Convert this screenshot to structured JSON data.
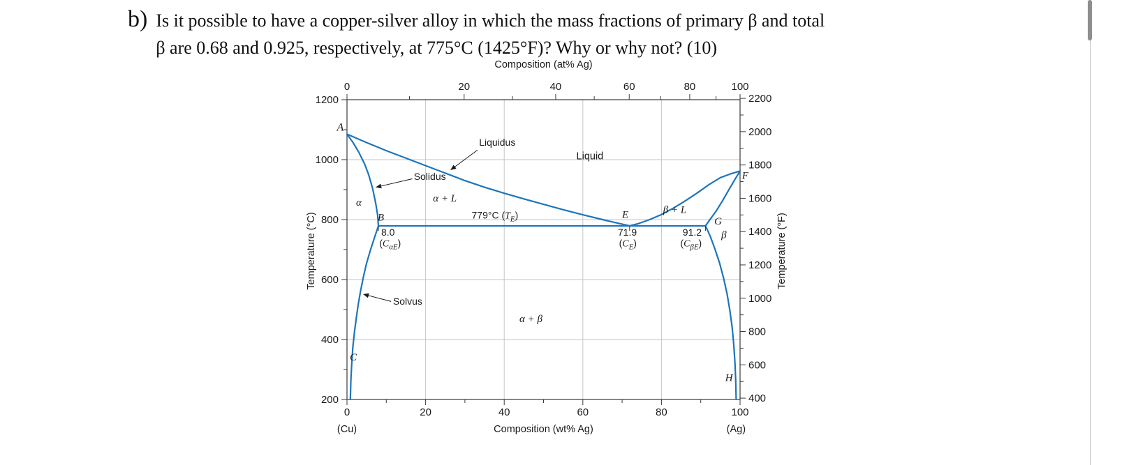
{
  "question": {
    "marker": "b)",
    "line1": "Is it possible to have a copper-silver alloy in which the mass fractions of primary β and total",
    "line2": "β are 0.68 and 0.925, respectively, at 775°C (1425°F)? Why or why not? (10)"
  },
  "chart_data": {
    "type": "line",
    "description": "Copper-silver binary eutectic phase diagram",
    "axes": {
      "top": {
        "label": "Composition (at% Ag)",
        "ticks": [
          {
            "v": 0,
            "wt": 0
          },
          {
            "v": 20,
            "wt": 29.8
          },
          {
            "v": 40,
            "wt": 53.1
          },
          {
            "v": 60,
            "wt": 71.8
          },
          {
            "v": 80,
            "wt": 87.2
          },
          {
            "v": 100,
            "wt": 100
          }
        ],
        "minor_wt": [
          15.9,
          42.1,
          62.9,
          79.8,
          93.9
        ]
      },
      "bottom": {
        "label": "Composition (wt% Ag)",
        "range": [
          0,
          100
        ],
        "ticks": [
          0,
          20,
          40,
          60,
          80,
          100
        ],
        "minor": [
          10,
          30,
          50,
          70,
          90
        ],
        "end_left": "(Cu)",
        "end_right": "(Ag)"
      },
      "left": {
        "label": "Temperature (°C)",
        "range": [
          200,
          1200
        ],
        "ticks": [
          200,
          400,
          600,
          800,
          1000,
          1200
        ],
        "minor": [
          300,
          500,
          700,
          900,
          1100
        ]
      },
      "right": {
        "label": "Temperature (°F)",
        "ticks": [
          400,
          600,
          800,
          1000,
          1200,
          1400,
          1600,
          1800,
          2000,
          2200
        ],
        "minor": [
          500,
          700,
          900,
          1100,
          1300,
          1500,
          1700,
          1900,
          2100
        ]
      }
    },
    "grid": {
      "v_wt": [
        20,
        40,
        60,
        80
      ],
      "h_c": [
        400,
        600,
        800,
        1000
      ]
    },
    "colors": {
      "boundary": "#1c75bc",
      "grid": "#c6c6c6",
      "frame": "#3a3a3a",
      "text": "#1a1a1a"
    },
    "eutectic": {
      "temperature_c": 779,
      "alpha_comp_wt": 8.0,
      "eutectic_comp_wt": 71.9,
      "beta_comp_wt": 91.2
    },
    "comp_ticks_wt": [
      8.0,
      71.9,
      91.2
    ],
    "boundaries": [
      {
        "name": "liquidus-left",
        "points": [
          [
            0,
            1085
          ],
          [
            5,
            1057
          ],
          [
            10,
            1030
          ],
          [
            15,
            1005
          ],
          [
            20,
            980
          ],
          [
            25,
            955
          ],
          [
            30,
            930
          ],
          [
            35,
            908
          ],
          [
            40,
            888
          ],
          [
            45,
            869
          ],
          [
            50,
            851
          ],
          [
            55,
            833
          ],
          [
            60,
            816
          ],
          [
            65,
            800
          ],
          [
            68,
            791
          ],
          [
            71.9,
            779
          ]
        ]
      },
      {
        "name": "liquidus-right",
        "points": [
          [
            71.9,
            779
          ],
          [
            74,
            786
          ],
          [
            77,
            800
          ],
          [
            80,
            817
          ],
          [
            83,
            838
          ],
          [
            86,
            862
          ],
          [
            89,
            888
          ],
          [
            92,
            916
          ],
          [
            95,
            940
          ],
          [
            97.5,
            952
          ],
          [
            100,
            962
          ]
        ]
      },
      {
        "name": "solidus-left",
        "points": [
          [
            0,
            1085
          ],
          [
            1.5,
            1058
          ],
          [
            3,
            1025
          ],
          [
            4.5,
            985
          ],
          [
            5.5,
            950
          ],
          [
            6.5,
            905
          ],
          [
            7.3,
            855
          ],
          [
            7.8,
            815
          ],
          [
            8,
            779
          ]
        ]
      },
      {
        "name": "solidus-right",
        "points": [
          [
            100,
            962
          ],
          [
            98.5,
            930
          ],
          [
            97,
            896
          ],
          [
            95.5,
            862
          ],
          [
            94,
            830
          ],
          [
            92.5,
            803
          ],
          [
            91.2,
            779
          ]
        ]
      },
      {
        "name": "solvus-left",
        "points": [
          [
            8,
            779
          ],
          [
            7,
            740
          ],
          [
            6,
            700
          ],
          [
            5,
            655
          ],
          [
            4.2,
            610
          ],
          [
            3.5,
            565
          ],
          [
            2.9,
            520
          ],
          [
            2.4,
            475
          ],
          [
            1.9,
            425
          ],
          [
            1.5,
            375
          ],
          [
            1.2,
            320
          ],
          [
            1.0,
            265
          ],
          [
            0.85,
            200
          ]
        ]
      },
      {
        "name": "solvus-right",
        "points": [
          [
            91.2,
            779
          ],
          [
            92.4,
            745
          ],
          [
            93.6,
            702
          ],
          [
            94.8,
            655
          ],
          [
            95.8,
            605
          ],
          [
            96.7,
            552
          ],
          [
            97.4,
            497
          ],
          [
            98,
            440
          ],
          [
            98.4,
            382
          ],
          [
            98.7,
            322
          ],
          [
            98.9,
            262
          ],
          [
            99,
            200
          ]
        ]
      },
      {
        "name": "eutectic-isotherm",
        "points": [
          [
            8,
            779
          ],
          [
            91.2,
            779
          ]
        ]
      }
    ],
    "labels": [
      {
        "wt": -1.7,
        "T": 1096,
        "anchor": "middle",
        "size": 16,
        "segments": [
          {
            "t": "A",
            "i": true
          }
        ]
      },
      {
        "wt": 8.6,
        "T": 796,
        "anchor": "middle",
        "size": 15,
        "segments": [
          {
            "t": "B",
            "i": true
          }
        ]
      },
      {
        "wt": 1.6,
        "T": 330,
        "anchor": "middle",
        "size": 15,
        "segments": [
          {
            "t": "C",
            "i": true
          }
        ]
      },
      {
        "wt": 70.8,
        "T": 806,
        "anchor": "middle",
        "size": 15,
        "segments": [
          {
            "t": "E",
            "i": true
          }
        ]
      },
      {
        "wt": 101.3,
        "T": 936,
        "anchor": "middle",
        "size": 15,
        "segments": [
          {
            "t": "F",
            "i": true
          }
        ]
      },
      {
        "wt": 94.4,
        "T": 784,
        "anchor": "middle",
        "size": 15,
        "segments": [
          {
            "t": "G",
            "i": true
          }
        ]
      },
      {
        "wt": 97.2,
        "T": 262,
        "anchor": "middle",
        "size": 15,
        "segments": [
          {
            "t": "H",
            "i": true
          }
        ]
      },
      {
        "wt": 3.0,
        "T": 846,
        "anchor": "middle",
        "size": 15,
        "segments": [
          {
            "t": "α",
            "i": true
          }
        ]
      },
      {
        "wt": 95.9,
        "T": 738,
        "anchor": "middle",
        "size": 15,
        "segments": [
          {
            "t": "β",
            "i": true
          }
        ]
      },
      {
        "wt": 24.9,
        "T": 861,
        "anchor": "middle",
        "size": 15,
        "segments": [
          {
            "t": "α + L",
            "i": true
          }
        ]
      },
      {
        "wt": 83.4,
        "T": 822,
        "anchor": "middle",
        "size": 15,
        "segments": [
          {
            "t": "β + L",
            "i": true
          }
        ]
      },
      {
        "wt": 46.8,
        "T": 458,
        "anchor": "middle",
        "size": 15,
        "segments": [
          {
            "t": "α + β",
            "i": true
          }
        ]
      },
      {
        "wt": 61.8,
        "T": 1001,
        "anchor": "middle",
        "size": 14.5,
        "segments": [
          {
            "t": "Liquid"
          }
        ]
      },
      {
        "wt": 33.6,
        "T": 1046,
        "anchor": "start",
        "size": 14,
        "segments": [
          {
            "t": "Liquidus"
          }
        ]
      },
      {
        "wt": 17.0,
        "T": 932,
        "anchor": "start",
        "size": 14,
        "segments": [
          {
            "t": "Solidus"
          }
        ]
      },
      {
        "wt": 11.7,
        "T": 516,
        "anchor": "start",
        "size": 14,
        "segments": [
          {
            "t": "Solvus"
          }
        ]
      },
      {
        "wt": 31.7,
        "T": 804,
        "anchor": "start",
        "size": 14,
        "segments": [
          {
            "t": "779°C ("
          },
          {
            "t": "T",
            "i": true
          },
          {
            "t": "E",
            "i": true,
            "sub": true
          },
          {
            "t": ")"
          }
        ]
      },
      {
        "wt": 8.7,
        "T": 746,
        "anchor": "start",
        "size": 14,
        "segments": [
          {
            "t": "8.0"
          }
        ]
      },
      {
        "wt": 8.2,
        "T": 710,
        "anchor": "start",
        "size": 14,
        "segments": [
          {
            "t": "("
          },
          {
            "t": "C",
            "i": true
          },
          {
            "t": "αE",
            "i": true,
            "sub": true
          },
          {
            "t": ")"
          }
        ]
      },
      {
        "wt": 68.9,
        "T": 746,
        "anchor": "start",
        "size": 14,
        "segments": [
          {
            "t": "71.9"
          }
        ]
      },
      {
        "wt": 69.2,
        "T": 710,
        "anchor": "start",
        "size": 14,
        "segments": [
          {
            "t": "("
          },
          {
            "t": "C",
            "i": true
          },
          {
            "t": "E",
            "i": true,
            "sub": true
          },
          {
            "t": ")"
          }
        ]
      },
      {
        "wt": 85.4,
        "T": 746,
        "anchor": "start",
        "size": 14,
        "segments": [
          {
            "t": "91.2"
          }
        ]
      },
      {
        "wt": 84.8,
        "T": 710,
        "anchor": "start",
        "size": 14,
        "segments": [
          {
            "t": "("
          },
          {
            "t": "C",
            "i": true
          },
          {
            "t": "βE",
            "i": true,
            "sub": true
          },
          {
            "t": ")"
          }
        ]
      }
    ],
    "arrows": [
      {
        "name": "liquidus-arrow",
        "from": [
          33.2,
          1032
        ],
        "to": [
          26.4,
          966
        ]
      },
      {
        "name": "solidus-arrow",
        "from": [
          16.6,
          936
        ],
        "to": [
          7.4,
          908
        ]
      },
      {
        "name": "solvus-arrow",
        "from": [
          11.2,
          527
        ],
        "to": [
          4.2,
          551
        ]
      }
    ]
  }
}
